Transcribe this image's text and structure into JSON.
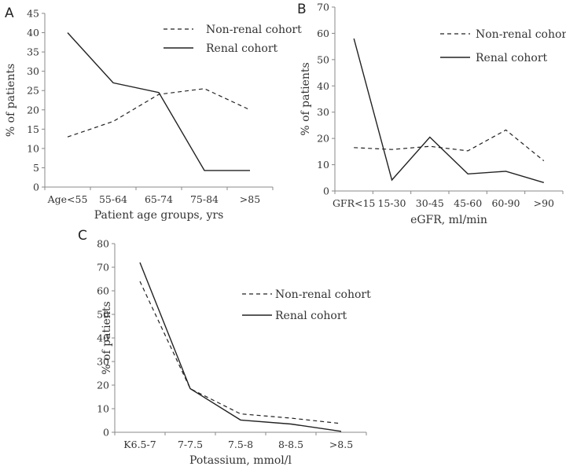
{
  "chart_data": [
    {
      "panel_label": "A",
      "type": "line",
      "categories": [
        "Age<55",
        "55-64",
        "65-74",
        "75-84",
        ">85"
      ],
      "xlabel": "Patient age groups, yrs",
      "ylabel": "% of patients",
      "ylim": [
        0,
        45
      ],
      "yticks": [
        0,
        5,
        10,
        15,
        20,
        25,
        30,
        35,
        40,
        45
      ],
      "series": [
        {
          "name": "Non-renal cohort",
          "style": "dashed",
          "values": [
            13,
            17,
            24,
            25.5,
            20
          ]
        },
        {
          "name": "Renal cohort",
          "style": "solid",
          "values": [
            40,
            27,
            24.5,
            4.3,
            4.3
          ]
        }
      ],
      "legend_position": "top-right"
    },
    {
      "panel_label": "B",
      "type": "line",
      "categories": [
        "GFR<15",
        "15-30",
        "30-45",
        "45-60",
        "60-90",
        ">90"
      ],
      "xlabel": "eGFR, ml/min",
      "ylabel": "% of patients",
      "ylim": [
        0,
        70
      ],
      "yticks": [
        0,
        10,
        20,
        30,
        40,
        50,
        60,
        70
      ],
      "series": [
        {
          "name": "Non-renal cohort",
          "style": "dashed",
          "values": [
            16.5,
            15.8,
            17,
            15.3,
            23.2,
            11.5
          ]
        },
        {
          "name": "Renal cohort",
          "style": "solid",
          "values": [
            58,
            4.2,
            20.5,
            6.5,
            7.5,
            3.2
          ]
        }
      ],
      "legend_position": "top-right"
    },
    {
      "panel_label": "C",
      "type": "line",
      "categories": [
        "K6.5-7",
        "7-7.5",
        "7.5-8",
        "8-8.5",
        ">8.5"
      ],
      "xlabel": "Potassium, mmol/l",
      "ylabel": "% of patients",
      "ylim": [
        0,
        80
      ],
      "yticks": [
        0,
        10,
        20,
        30,
        40,
        50,
        60,
        70,
        80
      ],
      "series": [
        {
          "name": "Non-renal cohort",
          "style": "dashed",
          "values": [
            64,
            18.5,
            7.8,
            6,
            3.7
          ]
        },
        {
          "name": "Renal cohort",
          "style": "solid",
          "values": [
            72,
            18.5,
            5.2,
            3.5,
            0.4
          ]
        }
      ],
      "legend_position": "top-right"
    }
  ]
}
